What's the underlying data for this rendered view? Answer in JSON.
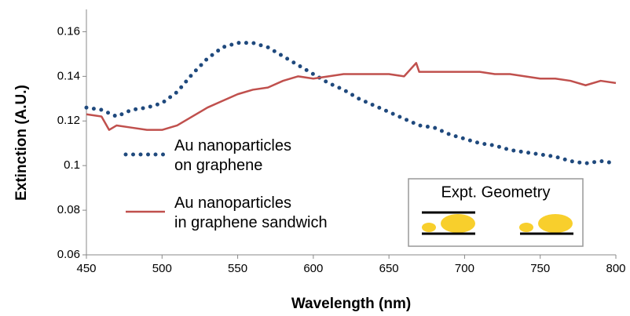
{
  "chart_data": {
    "type": "line",
    "x_label": "Wavelength (nm)",
    "y_label": "Extinction (A.U.)",
    "annotation": "Expt. Geometry",
    "xlim": [
      450,
      800
    ],
    "xticks": [
      450,
      500,
      550,
      600,
      650,
      700,
      750,
      800
    ],
    "ylim": [
      0.06,
      0.17
    ],
    "yticks": [
      0.06,
      0.08,
      0.1,
      0.12,
      0.14,
      0.16
    ],
    "grid": false,
    "series": [
      {
        "name": "Au nanoparticles\non graphene",
        "color": "#1f497d",
        "style": "dotted",
        "x": [
          450,
          460,
          470,
          480,
          490,
          500,
          510,
          520,
          530,
          540,
          550,
          560,
          570,
          580,
          590,
          600,
          610,
          620,
          630,
          640,
          650,
          660,
          670,
          680,
          690,
          700,
          710,
          720,
          730,
          740,
          750,
          760,
          770,
          780,
          790,
          800
        ],
        "values": [
          0.126,
          0.125,
          0.122,
          0.125,
          0.126,
          0.128,
          0.133,
          0.141,
          0.148,
          0.153,
          0.155,
          0.155,
          0.153,
          0.149,
          0.145,
          0.141,
          0.137,
          0.134,
          0.13,
          0.127,
          0.124,
          0.121,
          0.118,
          0.117,
          0.114,
          0.112,
          0.11,
          0.109,
          0.107,
          0.106,
          0.105,
          0.104,
          0.102,
          0.101,
          0.102,
          0.101
        ]
      },
      {
        "name": "Au nanoparticles\nin graphene sandwich",
        "color": "#c0504d",
        "style": "solid",
        "x": [
          450,
          460,
          465,
          470,
          480,
          490,
          500,
          510,
          520,
          530,
          540,
          550,
          560,
          570,
          580,
          590,
          600,
          610,
          620,
          630,
          640,
          650,
          660,
          668,
          670,
          680,
          690,
          700,
          710,
          720,
          730,
          740,
          750,
          760,
          770,
          780,
          790,
          800
        ],
        "values": [
          0.123,
          0.122,
          0.116,
          0.118,
          0.117,
          0.116,
          0.116,
          0.118,
          0.122,
          0.126,
          0.129,
          0.132,
          0.134,
          0.135,
          0.138,
          0.14,
          0.139,
          0.14,
          0.141,
          0.141,
          0.141,
          0.141,
          0.14,
          0.146,
          0.142,
          0.142,
          0.142,
          0.142,
          0.142,
          0.141,
          0.141,
          0.14,
          0.139,
          0.139,
          0.138,
          0.136,
          0.138,
          0.137
        ]
      }
    ]
  }
}
